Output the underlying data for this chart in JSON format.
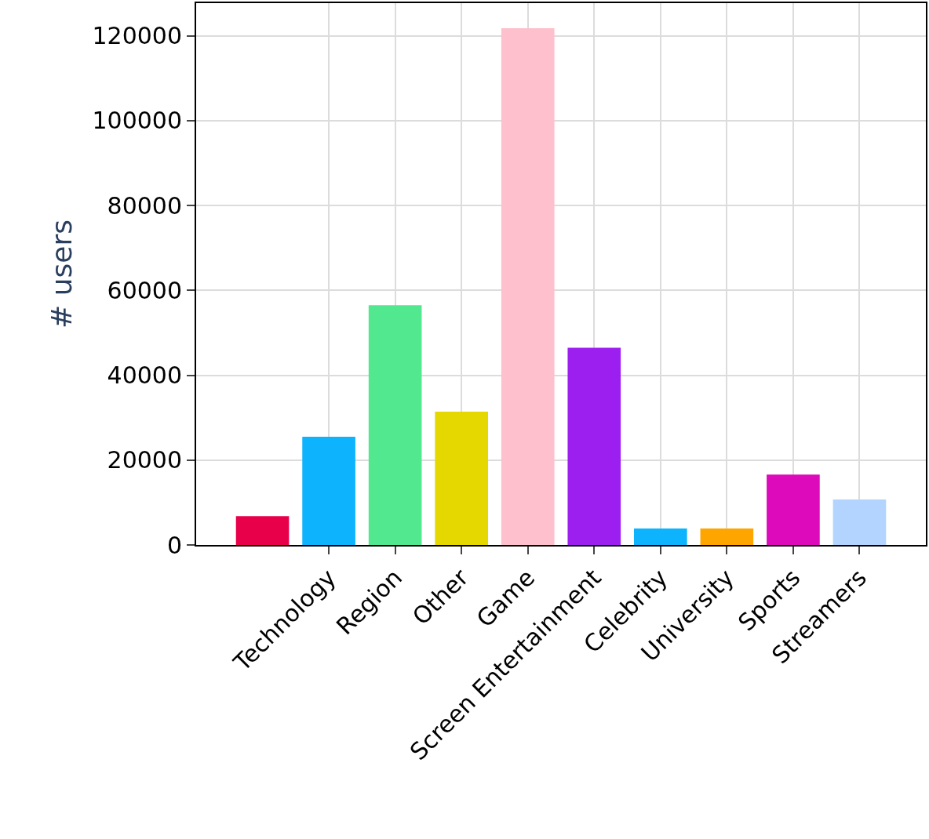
{
  "chart_data": {
    "type": "bar",
    "ylabel": "# users",
    "categories": [
      null,
      "Technology",
      "Region",
      "Other",
      "Game",
      "Screen Entertainment",
      "Celebrity",
      "University",
      "Sports",
      "Streamers"
    ],
    "values": [
      6800,
      25500,
      56500,
      31400,
      121800,
      46500,
      3900,
      3900,
      16600,
      10700
    ],
    "colors": [
      "#e8004b",
      "#0db4fd",
      "#51e890",
      "#e5d800",
      "#fdc0cc",
      "#9d1ff0",
      "#0db4fd",
      "#fea500",
      "#dc0aba",
      "#b3d4fe"
    ],
    "ylim": [
      0,
      127700
    ],
    "yticks": [
      0,
      20000,
      40000,
      60000,
      80000,
      100000,
      120000
    ],
    "grid": true,
    "legend": false
  }
}
